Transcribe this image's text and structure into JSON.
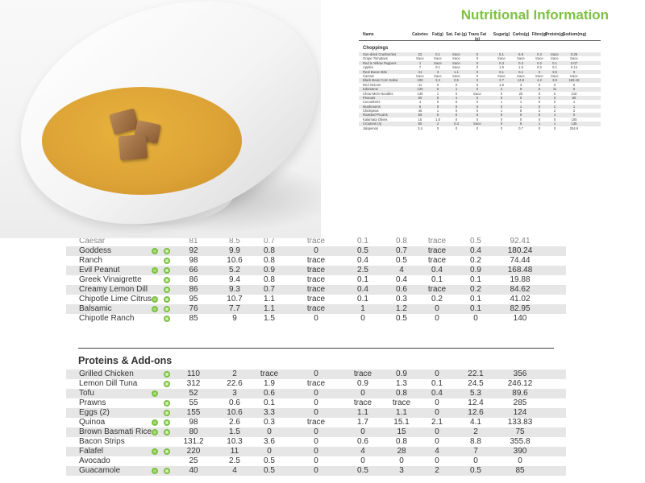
{
  "header": {
    "title": "Nutritional Information"
  },
  "small_table": {
    "columns": [
      "Name",
      "Calories",
      "Fat(g)",
      "Sat. Fat (g)",
      "Trans Fat (g)",
      "Sugar(g)",
      "Carbs(g)",
      "Fibre(g)",
      "Protein(g)",
      "Sodium(mg)"
    ],
    "section": "Choppings",
    "rows": [
      {
        "name": "Sun-dried Cranberries",
        "v": [
          "22",
          "0.1",
          "trace",
          "0",
          "5.1",
          "5.8",
          "0.4",
          "trace",
          "0.35"
        ]
      },
      {
        "name": "Grape Tomatoes",
        "v": [
          "trace",
          "trace",
          "trace",
          "0",
          "trace",
          "trace",
          "trace",
          "trace",
          "trace"
        ]
      },
      {
        "name": "Red & Yellow Peppers",
        "v": [
          "1",
          "trace",
          "trace",
          "0",
          "0.3",
          "0.3",
          "0.2",
          "0.1",
          "0.07"
        ]
      },
      {
        "name": "Apples",
        "v": [
          "7",
          "0.1",
          "trace",
          "0",
          "1.5",
          "1.5",
          "0.2",
          "0.1",
          "0.14"
        ]
      },
      {
        "name": "Real Bacon Bits",
        "v": [
          "41",
          "3",
          "1.1",
          "0",
          "0.1",
          "0.1",
          "0",
          "3.5",
          "0"
        ]
      },
      {
        "name": "Carrots",
        "v": [
          "trace",
          "trace",
          "trace",
          "0",
          "trace",
          "trace",
          "trace",
          "trace",
          "trace"
        ]
      },
      {
        "name": "Black Bean Corn Salsa",
        "v": [
          "100",
          "3.4",
          "0.5",
          "0",
          "2.7",
          "14.9",
          "4.2",
          "3.9",
          "165.18"
        ]
      },
      {
        "name": "Red Onions",
        "v": [
          "11",
          "0",
          "0",
          "0",
          "1.5",
          "3",
          "0",
          "0",
          "0"
        ]
      },
      {
        "name": "Edamame",
        "v": [
          "120",
          "5",
          "1",
          "0",
          "2",
          "9",
          "5",
          "11",
          "0"
        ]
      },
      {
        "name": "Chow Mein Noodles",
        "v": [
          "140",
          "1",
          "0",
          "trace",
          "0",
          "25",
          "0",
          "5",
          "210"
        ]
      },
      {
        "name": "Peanuts",
        "v": [
          "60",
          "5",
          "1",
          "0",
          "0",
          "0",
          "0",
          "3",
          "80"
        ]
      },
      {
        "name": "Cucumbers",
        "v": [
          "4",
          "0",
          "0",
          "0",
          "1",
          "1",
          "0",
          "0",
          "1"
        ]
      },
      {
        "name": "Mushrooms",
        "v": [
          "6",
          "0",
          "0",
          "0",
          "0",
          "1",
          "0",
          "1",
          "1"
        ]
      },
      {
        "name": "Chickpeas",
        "v": [
          "46",
          "1",
          "0",
          "0",
          "1",
          "8",
          "2",
          "2",
          "2"
        ]
      },
      {
        "name": "Roasted Pecans",
        "v": [
          "50",
          "5",
          "0",
          "0",
          "0",
          "0",
          "0",
          "1",
          "0"
        ]
      },
      {
        "name": "Kalamata Olives",
        "v": [
          "15",
          "1.5",
          "0",
          "0",
          "0",
          "0",
          "0",
          "0",
          "105"
        ]
      },
      {
        "name": "Croutons (4)",
        "v": [
          "60",
          "2",
          "0.3",
          "trace",
          "0",
          "8",
          "1",
          "1",
          "135"
        ]
      },
      {
        "name": "Jalapenos",
        "v": [
          "3.4",
          "0",
          "0",
          "0",
          "0",
          "0.7",
          "0",
          "0",
          "254.6"
        ]
      }
    ]
  },
  "dressings_table": {
    "rows": [
      {
        "name": "Caesar",
        "veg": false,
        "gf": false,
        "v": [
          "81",
          "8.5",
          "0.7",
          "trace",
          "0.1",
          "0.8",
          "trace",
          "0.5",
          "92.41"
        ],
        "partial": true
      },
      {
        "name": "Goddess",
        "veg": true,
        "gf": true,
        "v": [
          "92",
          "9.9",
          "0.8",
          "0",
          "0.5",
          "0.7",
          "trace",
          "0.4",
          "180.24"
        ]
      },
      {
        "name": "Ranch",
        "veg": false,
        "gf": true,
        "v": [
          "98",
          "10.6",
          "0.8",
          "trace",
          "0.4",
          "0.5",
          "trace",
          "0.2",
          "74.44"
        ]
      },
      {
        "name": "Evil Peanut",
        "veg": true,
        "gf": true,
        "v": [
          "66",
          "5.2",
          "0.9",
          "trace",
          "2.5",
          "4",
          "0.4",
          "0.9",
          "168.48"
        ]
      },
      {
        "name": "Greek Vinaigrette",
        "veg": false,
        "gf": true,
        "v": [
          "86",
          "9.4",
          "0.8",
          "trace",
          "0.1",
          "0.4",
          "0.1",
          "0.1",
          "19.88"
        ]
      },
      {
        "name": "Creamy Lemon Dill",
        "veg": false,
        "gf": true,
        "v": [
          "86",
          "9.3",
          "0.7",
          "trace",
          "0.4",
          "0.6",
          "trace",
          "0.2",
          "84.62"
        ]
      },
      {
        "name": "Chipotle Lime Citrus",
        "veg": true,
        "gf": true,
        "v": [
          "95",
          "10.7",
          "1.1",
          "trace",
          "0.1",
          "0.3",
          "0.2",
          "0.1",
          "41.02"
        ]
      },
      {
        "name": "Balsamic",
        "veg": true,
        "gf": true,
        "v": [
          "76",
          "7.7",
          "1.1",
          "trace",
          "1",
          "1.2",
          "0",
          "0.1",
          "82.95"
        ]
      },
      {
        "name": "Chipotle Ranch",
        "veg": false,
        "gf": true,
        "v": [
          "85",
          "9",
          "1.5",
          "0",
          "0",
          "0.5",
          "0",
          "0",
          "140"
        ]
      }
    ]
  },
  "proteins_table": {
    "title": "Proteins & Add-ons",
    "rows": [
      {
        "name": "Grilled Chicken",
        "veg": false,
        "gf": true,
        "v": [
          "110",
          "2",
          "trace",
          "0",
          "trace",
          "0.9",
          "0",
          "22.1",
          "356"
        ]
      },
      {
        "name": "Lemon Dill Tuna",
        "veg": false,
        "gf": true,
        "v": [
          "312",
          "22.6",
          "1.9",
          "trace",
          "0.9",
          "1.3",
          "0.1",
          "24.5",
          "246.12"
        ]
      },
      {
        "name": "Tofu",
        "veg": true,
        "gf": false,
        "v": [
          "52",
          "3",
          "0.6",
          "0",
          "0",
          "0.8",
          "0.4",
          "5.3",
          "89.6"
        ]
      },
      {
        "name": "Prawns",
        "veg": false,
        "gf": true,
        "v": [
          "55",
          "0.6",
          "0.1",
          "0",
          "trace",
          "trace",
          "0",
          "12.4",
          "285"
        ]
      },
      {
        "name": "Eggs (2)",
        "veg": false,
        "gf": true,
        "v": [
          "155",
          "10.6",
          "3.3",
          "0",
          "1.1",
          "1.1",
          "0",
          "12.6",
          "124"
        ]
      },
      {
        "name": "Quinoa",
        "veg": true,
        "gf": true,
        "v": [
          "98",
          "2.6",
          "0.3",
          "trace",
          "1.7",
          "15.1",
          "2.1",
          "4.1",
          "133.83"
        ]
      },
      {
        "name": "Brown Basmati Rice",
        "veg": true,
        "gf": true,
        "v": [
          "80",
          "1.5",
          "0",
          "0",
          "0",
          "15",
          "0",
          "2",
          "75"
        ]
      },
      {
        "name": "Bacon Strips",
        "veg": false,
        "gf": false,
        "v": [
          "131.2",
          "10.3",
          "3.6",
          "0",
          "0.6",
          "0.8",
          "0",
          "8.8",
          "355.8"
        ]
      },
      {
        "name": "Falafel",
        "veg": true,
        "gf": true,
        "v": [
          "220",
          "11",
          "0",
          "0",
          "4",
          "28",
          "4",
          "7",
          "390"
        ]
      },
      {
        "name": "Avocado",
        "veg": false,
        "gf": false,
        "v": [
          "25",
          "2.5",
          "0.5",
          "0",
          "0",
          "0",
          "0",
          "0",
          "0"
        ]
      },
      {
        "name": "Guacamole",
        "veg": true,
        "gf": true,
        "v": [
          "40",
          "4",
          "0.5",
          "0",
          "0.5",
          "3",
          "2",
          "0.5",
          "85"
        ]
      }
    ]
  },
  "icons": {
    "vegetarian": "vegan-leaf-icon",
    "gluten_free": "gluten-free-icon"
  },
  "colors": {
    "accent_green": "#7dc142",
    "row_stripe": "#e6e6e6",
    "soup": "#dca236"
  }
}
